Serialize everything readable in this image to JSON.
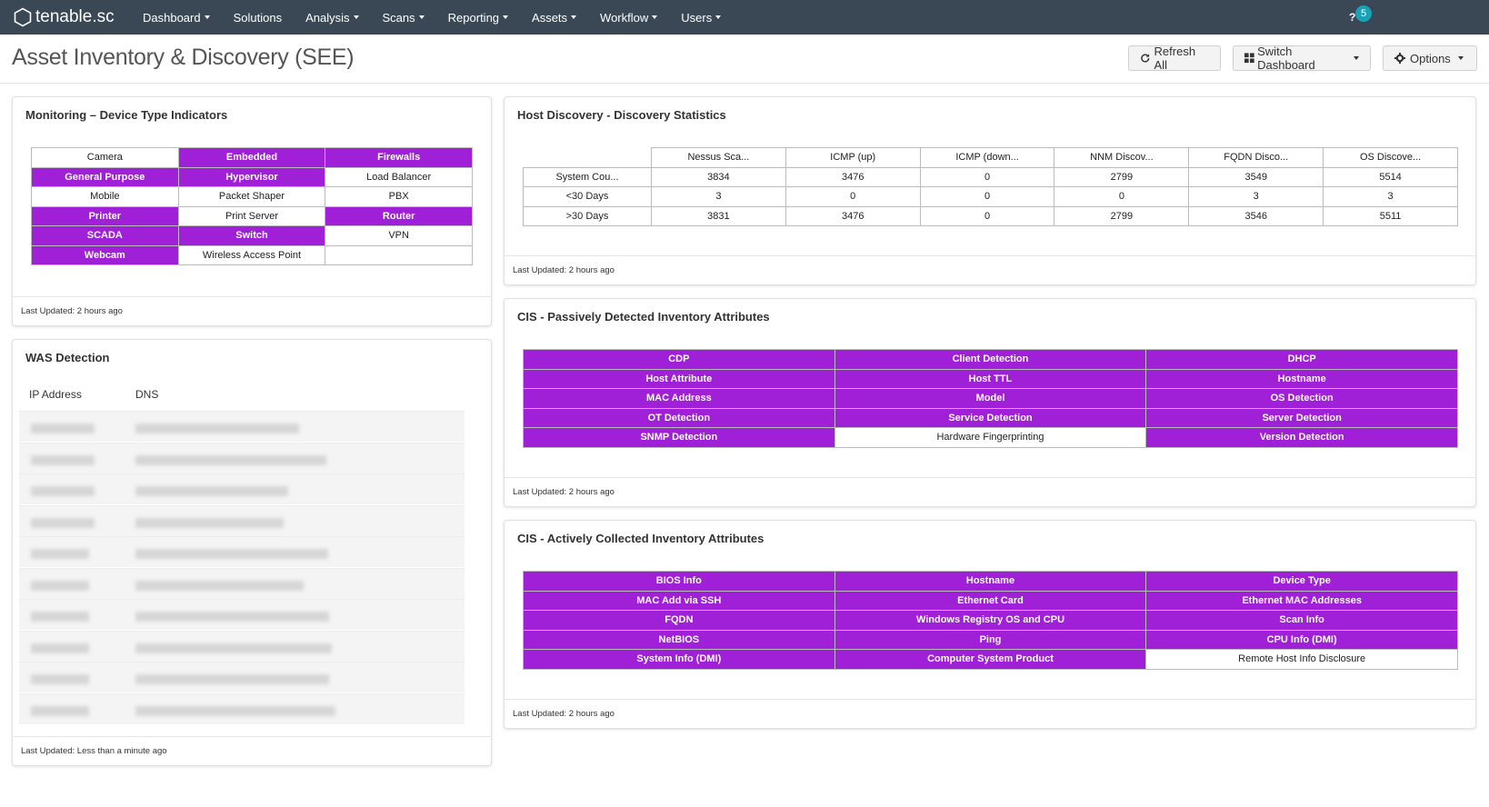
{
  "nav": {
    "logo": "tenable.sc",
    "items": [
      "Dashboard",
      "Solutions",
      "Analysis",
      "Scans",
      "Reporting",
      "Assets",
      "Workflow",
      "Users"
    ],
    "has_caret": [
      true,
      false,
      true,
      true,
      true,
      true,
      true,
      true
    ],
    "notification_count": "5"
  },
  "header": {
    "title": "Asset Inventory & Discovery (SEE)",
    "refresh_label": "Refresh All",
    "switch_label": "Switch Dashboard",
    "options_label": "Options"
  },
  "monitoring": {
    "title": "Monitoring – Device Type Indicators",
    "cells": [
      {
        "label": "Camera",
        "active": false
      },
      {
        "label": "Embedded",
        "active": true
      },
      {
        "label": "Firewalls",
        "active": true
      },
      {
        "label": "General Purpose",
        "active": true
      },
      {
        "label": "Hypervisor",
        "active": true
      },
      {
        "label": "Load Balancer",
        "active": false
      },
      {
        "label": "Mobile",
        "active": false
      },
      {
        "label": "Packet Shaper",
        "active": false
      },
      {
        "label": "PBX",
        "active": false
      },
      {
        "label": "Printer",
        "active": true
      },
      {
        "label": "Print Server",
        "active": false
      },
      {
        "label": "Router",
        "active": true
      },
      {
        "label": "SCADA",
        "active": true
      },
      {
        "label": "Switch",
        "active": true
      },
      {
        "label": "VPN",
        "active": false
      },
      {
        "label": "Webcam",
        "active": true
      },
      {
        "label": "Wireless Access Point",
        "active": false
      },
      {
        "label": "",
        "active": false
      }
    ],
    "footer": "Last Updated: 2 hours ago"
  },
  "host_discovery": {
    "title": "Host Discovery - Discovery Statistics",
    "columns": [
      "Nessus Sca...",
      "ICMP (up)",
      "ICMP (down...",
      "NNM Discov...",
      "FQDN Disco...",
      "OS Discove..."
    ],
    "rows": [
      {
        "label": "System Cou...",
        "values": [
          "3834",
          "3476",
          "0",
          "2799",
          "3549",
          "5514"
        ]
      },
      {
        "label": "<30 Days",
        "values": [
          "3",
          "0",
          "0",
          "0",
          "3",
          "3"
        ]
      },
      {
        "label": ">30 Days",
        "values": [
          "3831",
          "3476",
          "0",
          "2799",
          "3546",
          "5511"
        ]
      }
    ],
    "footer": "Last Updated: 2 hours ago"
  },
  "was": {
    "title": "WAS Detection",
    "col_ip": "IP Address",
    "col_dns": "DNS",
    "row_count": 10,
    "footer": "Last Updated: Less than a minute ago"
  },
  "passive": {
    "title": "CIS - Passively Detected Inventory Attributes",
    "cells": [
      {
        "label": "CDP",
        "active": true
      },
      {
        "label": "Client Detection",
        "active": true
      },
      {
        "label": "DHCP",
        "active": true
      },
      {
        "label": "Host Attribute",
        "active": true
      },
      {
        "label": "Host TTL",
        "active": true
      },
      {
        "label": "Hostname",
        "active": true
      },
      {
        "label": "MAC Address",
        "active": true
      },
      {
        "label": "Model",
        "active": true
      },
      {
        "label": "OS Detection",
        "active": true
      },
      {
        "label": "OT Detection",
        "active": true
      },
      {
        "label": "Service Detection",
        "active": true
      },
      {
        "label": "Server Detection",
        "active": true
      },
      {
        "label": "SNMP Detection",
        "active": true
      },
      {
        "label": "Hardware Fingerprinting",
        "active": false
      },
      {
        "label": "Version Detection",
        "active": true
      }
    ],
    "footer": "Last Updated: 2 hours ago"
  },
  "active": {
    "title": "CIS - Actively Collected Inventory Attributes",
    "cells": [
      {
        "label": "BIOS Info",
        "active": true
      },
      {
        "label": "Hostname",
        "active": true
      },
      {
        "label": "Device Type",
        "active": true
      },
      {
        "label": "MAC Add via SSH",
        "active": true
      },
      {
        "label": "Ethernet Card",
        "active": true
      },
      {
        "label": "Ethernet MAC Addresses",
        "active": true
      },
      {
        "label": "FQDN",
        "active": true
      },
      {
        "label": "Windows Registry OS and CPU",
        "active": true
      },
      {
        "label": "Scan Info",
        "active": true
      },
      {
        "label": "NetBIOS",
        "active": true
      },
      {
        "label": "Ping",
        "active": true
      },
      {
        "label": "CPU Info (DMI)",
        "active": true
      },
      {
        "label": "System Info (DMI)",
        "active": true
      },
      {
        "label": "Computer System Product",
        "active": true
      },
      {
        "label": "Remote Host Info Disclosure",
        "active": false
      }
    ],
    "footer": "Last Updated: 2 hours ago"
  },
  "colors": {
    "accent": "#a020d8",
    "nav_bg": "#3a4856"
  }
}
